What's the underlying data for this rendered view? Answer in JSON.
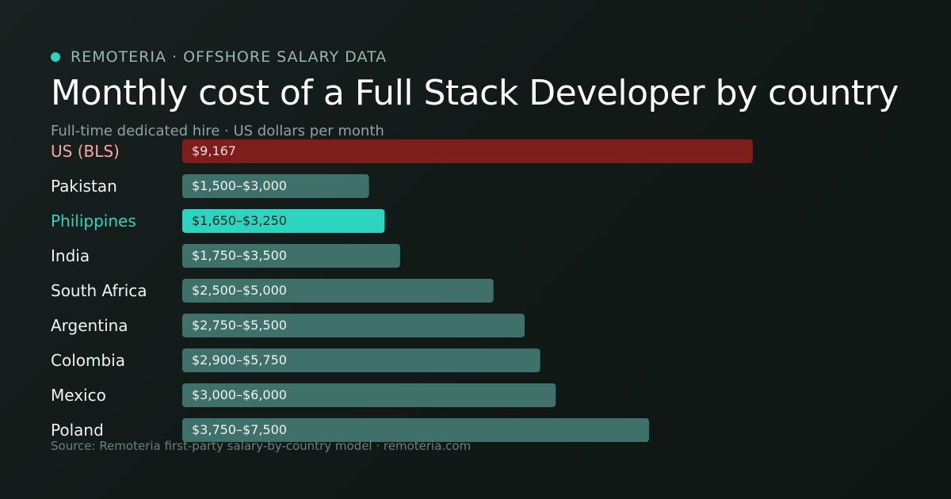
{
  "header": {
    "brand": "REMOTERIA · OFFSHORE SALARY DATA",
    "title": "Monthly cost of a Full Stack Developer by country",
    "subtitle": "Full-time dedicated hire · US dollars per month"
  },
  "footer": {
    "source": "Source: Remoteria first-party salary-by-country model · remoteria.com"
  },
  "colors": {
    "accent": "#2dd4bf",
    "us_bar": "#7f1d1d",
    "us_label": "#fca5a5",
    "default_bar": "#3f706a",
    "highlight_bar": "#2dd4bf",
    "highlight_label": "#2dd4bf"
  },
  "chart_data": {
    "type": "bar",
    "orientation": "horizontal",
    "unit": "USD per month",
    "categories": [
      "US (BLS)",
      "Pakistan",
      "Philippines",
      "India",
      "South Africa",
      "Argentina",
      "Colombia",
      "Mexico",
      "Poland"
    ],
    "values": [
      9167,
      3000,
      3250,
      3500,
      5000,
      5500,
      5750,
      6000,
      7500
    ],
    "ranges": [
      null,
      [
        1500,
        3000
      ],
      [
        1650,
        3250
      ],
      [
        1750,
        3500
      ],
      [
        2500,
        5000
      ],
      [
        2750,
        5500
      ],
      [
        2900,
        5750
      ],
      [
        3000,
        6000
      ],
      [
        3750,
        7500
      ]
    ],
    "data_labels": [
      "$9,167",
      "$1,500–$3,000",
      "$1,650–$3,250",
      "$1,750–$3,500",
      "$2,500–$5,000",
      "$2,750–$5,500",
      "$2,900–$5,750",
      "$3,000–$6,000",
      "$3,750–$7,500"
    ],
    "highlight": [
      "US (BLS)",
      "Philippines"
    ],
    "xlim": [
      0,
      9167
    ],
    "grid": false,
    "legend": "none"
  }
}
